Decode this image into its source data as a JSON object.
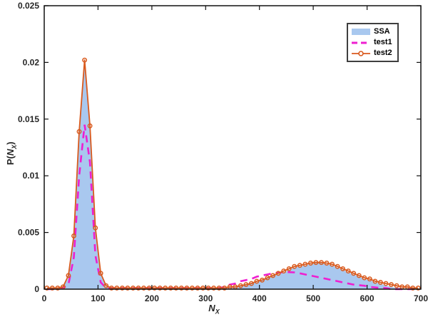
{
  "figure": {
    "background": "#ffffff",
    "axes_color": "#111111",
    "tick_label_color": "#262626"
  },
  "axes": {
    "ylabel": {
      "pre": "P(",
      "sym": "N",
      "sub": "X",
      "post": ")"
    },
    "xlabel": {
      "sym": "N",
      "sub": "X"
    }
  },
  "legend": {
    "position": "top-right",
    "items": [
      {
        "label": "SSA",
        "swatch": "filled-area"
      },
      {
        "label": "test1",
        "swatch": "dashed-line"
      },
      {
        "label": "test2",
        "swatch": "line-circle-marker"
      }
    ]
  },
  "chart_data": {
    "type": "line",
    "title": "",
    "xlabel": "N_X",
    "ylabel": "P(N_X)",
    "xlim": [
      0,
      700
    ],
    "ylim": [
      0,
      0.025
    ],
    "grid": false,
    "legend_position": "top-right",
    "xticks": {
      "values": [
        0,
        100,
        200,
        300,
        400,
        500,
        600,
        700
      ],
      "labels": [
        "0",
        "100",
        "200",
        "300",
        "400",
        "500",
        "600",
        "700"
      ]
    },
    "yticks": {
      "values": [
        0,
        0.005,
        0.01,
        0.015,
        0.02,
        0.025
      ],
      "labels": [
        "0",
        "0.005",
        "0.01",
        "0.015",
        "0.02",
        "0.025"
      ]
    },
    "x": [
      5,
      15,
      25,
      35,
      45,
      55,
      65,
      75,
      85,
      95,
      105,
      115,
      125,
      135,
      145,
      155,
      165,
      175,
      185,
      195,
      205,
      215,
      225,
      235,
      245,
      255,
      265,
      275,
      285,
      295,
      305,
      315,
      325,
      335,
      345,
      355,
      365,
      375,
      385,
      395,
      405,
      415,
      425,
      435,
      445,
      455,
      465,
      475,
      485,
      495,
      505,
      515,
      525,
      535,
      545,
      555,
      565,
      575,
      585,
      595,
      605,
      615,
      625,
      635,
      645,
      655,
      665,
      675,
      685,
      695
    ],
    "series": [
      {
        "name": "SSA",
        "type": "area",
        "fill_color": "#A9C8EF",
        "values": [
          0.0001,
          0.0001,
          0.0001,
          0.0002,
          0.001,
          0.0044,
          0.0136,
          0.0198,
          0.0141,
          0.0052,
          0.0013,
          0.0002,
          0.0001,
          0.0001,
          0.0001,
          0.0001,
          0.0001,
          0.0001,
          0.0001,
          0.0001,
          0.0001,
          0.0001,
          0.0001,
          0.0001,
          0.0001,
          0.0001,
          0.0001,
          0.0001,
          0.0001,
          0.0001,
          0.0001,
          0.0001,
          0.0001,
          0.0001,
          0.0002,
          0.0002,
          0.0003,
          0.0004,
          0.0005,
          0.0006,
          0.0008,
          0.001,
          0.0012,
          0.0013,
          0.0015,
          0.0017,
          0.0019,
          0.002,
          0.0021,
          0.0022,
          0.0023,
          0.0023,
          0.0022,
          0.0021,
          0.0019,
          0.0017,
          0.0015,
          0.0013,
          0.0011,
          0.0009,
          0.0008,
          0.0006,
          0.0005,
          0.0003,
          0.0002,
          0.0001,
          0.0001,
          0.0,
          0.0,
          0.0
        ]
      },
      {
        "name": "test1",
        "type": "dashed-line",
        "color": "#EE1FD0",
        "line_width": 2.6,
        "values": [
          0.0,
          0.0,
          0.0,
          0.0001,
          0.0004,
          0.0028,
          0.01,
          0.0145,
          0.0112,
          0.003,
          0.0006,
          0.0001,
          0.0001,
          0.0001,
          0.0001,
          0.0001,
          0.0001,
          0.0001,
          0.0001,
          0.0001,
          0.0001,
          0.0001,
          0.0001,
          0.0001,
          0.0001,
          0.0001,
          0.0001,
          0.0001,
          0.0001,
          0.0001,
          0.0001,
          0.0001,
          0.0001,
          0.0002,
          0.0004,
          0.0005,
          0.0007,
          0.0008,
          0.0009,
          0.0011,
          0.0012,
          0.0013,
          0.0014,
          0.00145,
          0.0015,
          0.0015,
          0.00148,
          0.0014,
          0.0013,
          0.0012,
          0.0011,
          0.001,
          0.0009,
          0.0008,
          0.0007,
          0.0006,
          0.0005,
          0.0004,
          0.00035,
          0.0003,
          0.0002,
          0.00015,
          0.0001,
          0.0001,
          0.0,
          0.0,
          0.0,
          0.0,
          0.0,
          0.0
        ]
      },
      {
        "name": "test2",
        "type": "line-markers",
        "color": "#D95A1E",
        "marker": "open-circle",
        "line_width": 1.8,
        "values": [
          0.0001,
          0.0001,
          0.0001,
          0.0002,
          0.0012,
          0.0047,
          0.0139,
          0.0202,
          0.0144,
          0.0054,
          0.0014,
          0.0003,
          0.0001,
          0.0001,
          0.0001,
          0.0001,
          0.0001,
          0.0001,
          0.0001,
          0.0001,
          0.0001,
          0.0001,
          0.0001,
          0.0001,
          0.0001,
          0.0001,
          0.0001,
          0.0001,
          0.0001,
          0.0001,
          0.0001,
          0.0001,
          0.0001,
          0.0001,
          0.0002,
          0.0002,
          0.0003,
          0.0004,
          0.0005,
          0.0007,
          0.0008,
          0.001,
          0.0012,
          0.0014,
          0.0016,
          0.0018,
          0.002,
          0.0021,
          0.0022,
          0.0023,
          0.00235,
          0.00235,
          0.0023,
          0.0022,
          0.002,
          0.0018,
          0.0016,
          0.0014,
          0.0012,
          0.001,
          0.0009,
          0.0007,
          0.0006,
          0.0005,
          0.0004,
          0.0003,
          0.0002,
          0.0002,
          0.0001,
          0.0001
        ]
      }
    ]
  }
}
